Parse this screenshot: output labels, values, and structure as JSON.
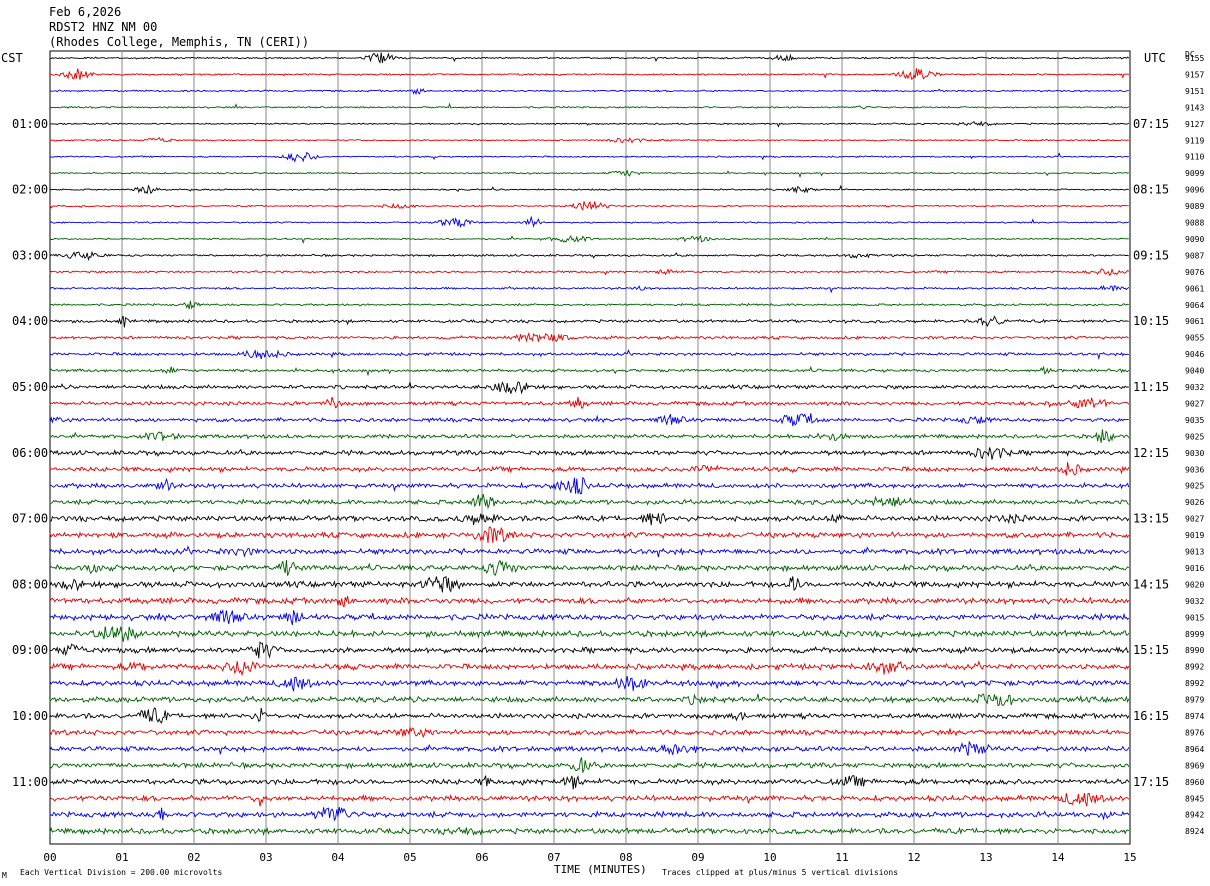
{
  "header": {
    "date": "Feb 6,2026",
    "station": "RDST2 HNZ NM 00",
    "location": "(Rhodes College, Memphis, TN (CERI))"
  },
  "left_axis_title": "CST",
  "right_axis_title": "UTC",
  "dc_title": "DC",
  "footer": {
    "vertical_division": "Each Vertical Division =  200.00 microvolts",
    "clipping": "Traces clipped at plus/minus 5 vertical divisions",
    "corner_mark": "M"
  },
  "chart_data": {
    "type": "line",
    "title": "",
    "xlabel": "TIME (MINUTES)",
    "ylabel": "",
    "xlim": [
      0,
      15
    ],
    "x_tick_labels": [
      "00",
      "01",
      "02",
      "03",
      "04",
      "05",
      "06",
      "07",
      "08",
      "09",
      "10",
      "11",
      "12",
      "13",
      "14",
      "15"
    ],
    "grid": true,
    "trace_colors": [
      "#000000",
      "#e00000",
      "#0000e0",
      "#006000"
    ],
    "left_hour_labels": [
      "01:00",
      "02:00",
      "03:00",
      "04:00",
      "05:00",
      "06:00",
      "07:00",
      "08:00",
      "09:00",
      "10:00",
      "11:00"
    ],
    "right_hour_labels": [
      "07:15",
      "08:15",
      "09:15",
      "10:15",
      "11:15",
      "12:15",
      "13:15",
      "14:15",
      "15:15",
      "16:15",
      "17:15"
    ],
    "dc_values": [
      "9155",
      "9157",
      "9151",
      "9143",
      "9127",
      "9119",
      "9110",
      "9099",
      "9096",
      "9089",
      "9088",
      "9090",
      "9087",
      "9076",
      "9061",
      "9064",
      "9061",
      "9055",
      "9046",
      "9040",
      "9032",
      "9027",
      "9035",
      "9025",
      "9030",
      "9036",
      "9025",
      "9026",
      "9027",
      "9019",
      "9013",
      "9016",
      "9020",
      "9032",
      "9015",
      "8999",
      "8990",
      "8992",
      "8992",
      "8979",
      "8974",
      "8976",
      "8964",
      "8969",
      "8960",
      "8945",
      "8942",
      "8924"
    ],
    "trace_count": 48,
    "noise_level_by_hour": [
      0.8,
      0.7,
      0.7,
      1.0,
      1.4,
      1.8,
      2.2,
      2.6,
      2.8,
      2.6,
      2.4,
      2.6
    ]
  }
}
